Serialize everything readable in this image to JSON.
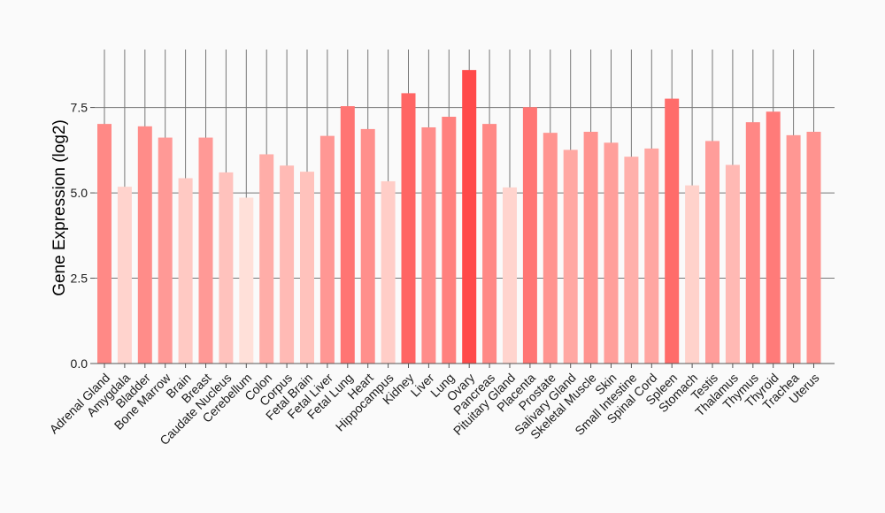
{
  "chart_data": {
    "type": "bar",
    "title": "",
    "xlabel": "",
    "ylabel": "Gene Expression (log2)",
    "ylim": [
      0,
      9.2
    ],
    "yticks": [
      0.0,
      2.5,
      5.0,
      7.5
    ],
    "ytick_labels": [
      "0.0",
      "2.5",
      "5.0",
      "7.5"
    ],
    "grid": true,
    "categories": [
      "Adrenal Gland",
      "Amygdala",
      "Bladder",
      "Bone Marrow",
      "Brain",
      "Breast",
      "Caudate Nucleus",
      "Cerebellum",
      "Colon",
      "Corpus",
      "Fetal Brain",
      "Fetal Liver",
      "Fetal Lung",
      "Heart",
      "Hippocampus",
      "Kidney",
      "Liver",
      "Lung",
      "Ovary",
      "Pancreas",
      "Pituitary Gland",
      "Placenta",
      "Prostate",
      "Salivary Gland",
      "Skeletal Muscle",
      "Skin",
      "Small Intestine",
      "Spinal Cord",
      "Spleen",
      "Stomach",
      "Testis",
      "Thalamus",
      "Thymus",
      "Thyroid",
      "Trachea",
      "Uterus"
    ],
    "values": [
      7.02,
      5.18,
      6.95,
      6.62,
      5.43,
      6.62,
      5.6,
      4.86,
      6.13,
      5.8,
      5.62,
      6.67,
      7.54,
      6.87,
      5.34,
      7.92,
      6.92,
      7.23,
      8.6,
      7.02,
      5.16,
      7.51,
      6.76,
      6.26,
      6.79,
      6.47,
      6.06,
      6.3,
      7.76,
      5.22,
      6.52,
      5.82,
      7.07,
      7.38,
      6.69,
      6.79
    ],
    "color_low": "#ffe0d9",
    "color_high": "#ff4a4a"
  },
  "colors": {
    "background": "#fafafa",
    "gridline": "#777777",
    "axis": "#555555"
  }
}
